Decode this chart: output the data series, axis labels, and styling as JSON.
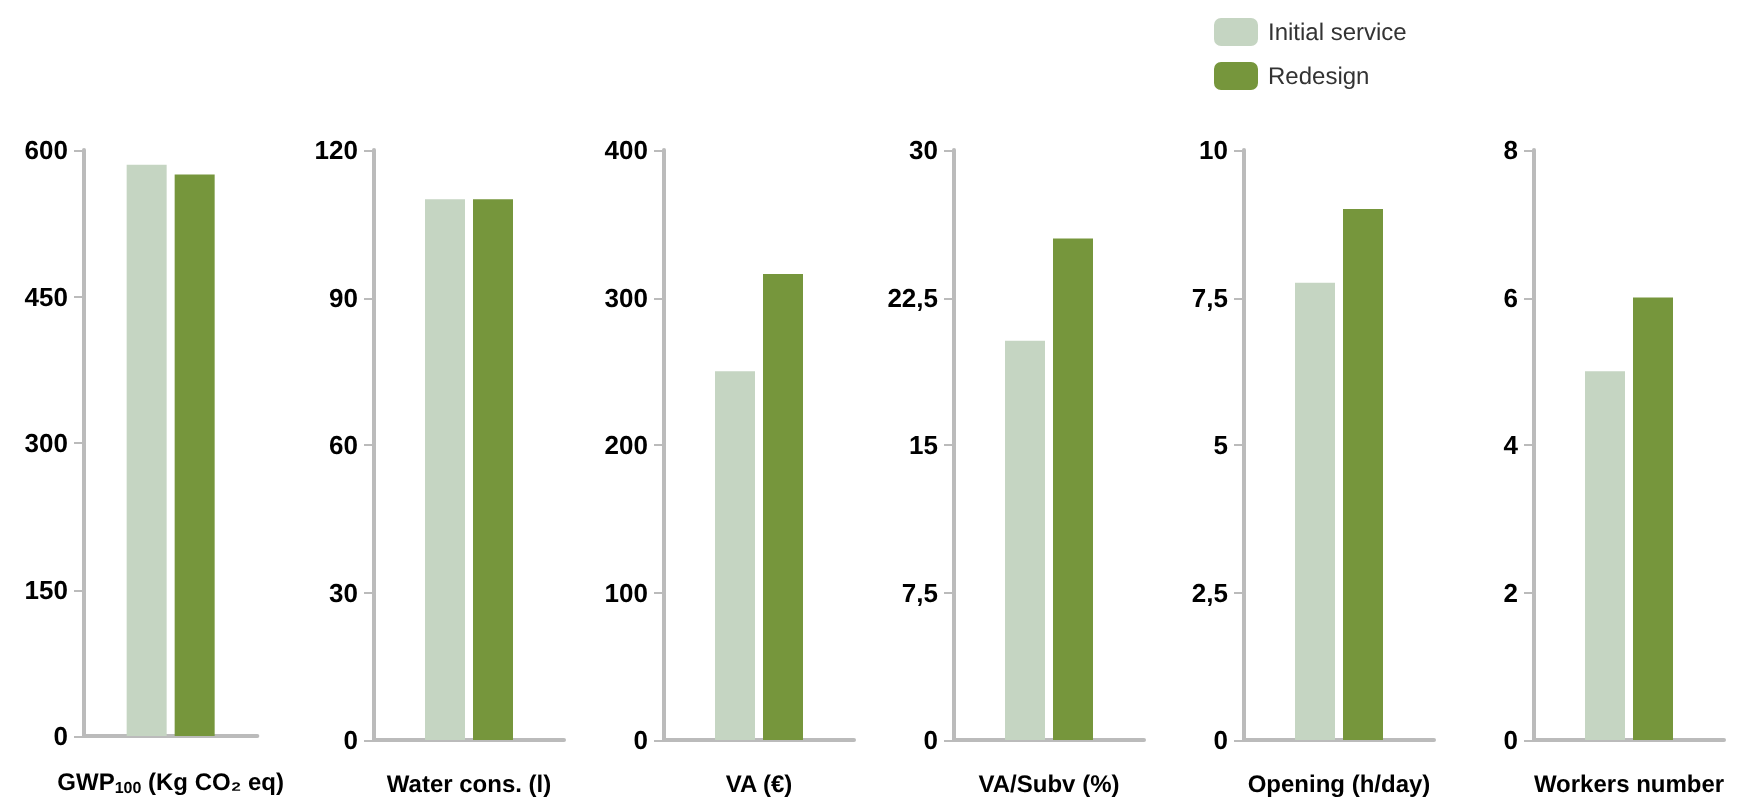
{
  "chart_data": [
    {
      "type": "bar",
      "xlabel": "GWP$_{100}$ (Kg CO₂ eq)",
      "categories": [
        null
      ],
      "ylim": [
        0,
        600
      ],
      "yticks": [
        0,
        150,
        300,
        450,
        600
      ],
      "series": [
        {
          "color": "#c5d5c2",
          "values": [
            585
          ]
        },
        {
          "color": "#76963c",
          "values": [
            575
          ]
        }
      ]
    },
    {
      "type": "bar",
      "xlabel": "Water cons. (l)",
      "categories": [
        null
      ],
      "ylim": [
        0,
        120
      ],
      "yticks": [
        0,
        30,
        60,
        90,
        120
      ],
      "series": [
        {
          "color": "#c5d5c2",
          "values": [
            110
          ]
        },
        {
          "color": "#76963c",
          "values": [
            110
          ]
        }
      ]
    },
    {
      "type": "bar",
      "xlabel": "VA (€)",
      "categories": [
        null
      ],
      "ylim": [
        0,
        400
      ],
      "yticks": [
        0,
        100,
        200,
        300,
        400
      ],
      "series": [
        {
          "color": "#c5d5c2",
          "values": [
            250
          ]
        },
        {
          "color": "#76963c",
          "values": [
            316
          ]
        }
      ]
    },
    {
      "type": "bar",
      "xlabel": "VA/Subv (%)",
      "categories": [
        null
      ],
      "ylim": [
        0,
        30
      ],
      "yticks": [
        0,
        {
          "value": 7.5,
          "label": "7,5"
        },
        15,
        {
          "value": 22.5,
          "label": "22,5"
        },
        30
      ],
      "series": [
        {
          "color": "#c5d5c2",
          "values": [
            20.3
          ]
        },
        {
          "color": "#76963c",
          "values": [
            25.5
          ]
        }
      ]
    },
    {
      "type": "bar",
      "xlabel": "Opening (h/day)",
      "categories": [
        null
      ],
      "ylim": [
        0,
        10
      ],
      "yticks": [
        0,
        {
          "value": 2.5,
          "label": "2,5"
        },
        5,
        {
          "value": 7.5,
          "label": "7,5"
        },
        10
      ],
      "legend": "top",
      "series": [
        {
          "name": "Initial service",
          "color": "#c5d5c2",
          "values": [
            7.75
          ]
        },
        {
          "name": "Redesign",
          "color": "#76963c",
          "values": [
            9
          ]
        }
      ]
    },
    {
      "type": "bar",
      "xlabel": "Workers number",
      "categories": [
        null
      ],
      "ylim": [
        0,
        8
      ],
      "yticks": [
        0,
        2,
        4,
        6,
        8
      ],
      "series": [
        {
          "color": "#c5d5c2",
          "values": [
            5
          ]
        },
        {
          "color": "#76963c",
          "values": [
            6
          ]
        }
      ]
    }
  ]
}
